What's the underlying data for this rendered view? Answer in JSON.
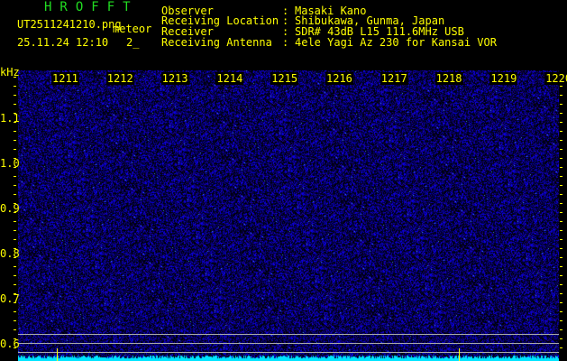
{
  "header": {
    "title": "HROFFT",
    "filename": "UT2511241210.png",
    "mode": "meteor",
    "datetime": "25.11.24 12:10",
    "count": "2_",
    "info": [
      {
        "label": "Observer",
        "value": "Masaki Kano"
      },
      {
        "label": "Receiving Location",
        "value": "Shibukawa, Gunma, Japan"
      },
      {
        "label": "Receiver",
        "value": "SDR# 43dB L15 111.6MHz USB"
      },
      {
        "label": "Receiving Antenna",
        "value": "4ele Yagi Az 230 for Kansai VOR"
      }
    ]
  },
  "axis": {
    "y_unit": "kHz",
    "y_ticks": [
      "1.1",
      "1.0",
      "0.9",
      "0.8",
      "0.7",
      "0.6"
    ],
    "x_ticks": [
      "1211",
      "1212",
      "1213",
      "1214",
      "1215",
      "1216",
      "1217",
      "1218",
      "1219",
      "1220"
    ]
  },
  "colors": {
    "text": "#ffff00",
    "title": "#22dd22",
    "noise": "#1a1aff",
    "spectrum": "#00e5ff"
  }
}
